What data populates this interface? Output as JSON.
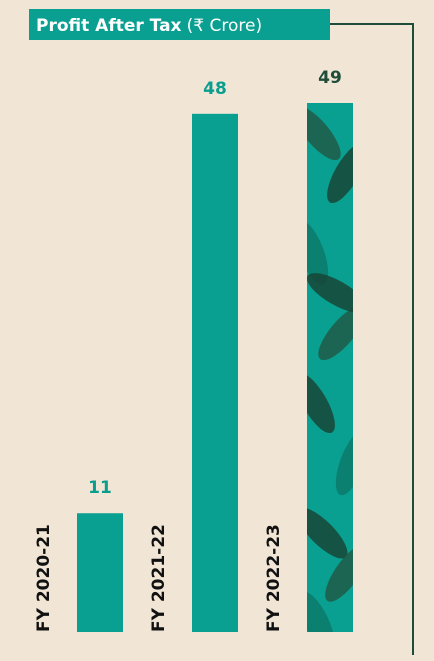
{
  "chart_data": {
    "type": "bar",
    "title": "Profit After Tax",
    "unit": "(₹ Crore)",
    "categories": [
      "FY 2020-21",
      "FY 2021-22",
      "FY 2022-23"
    ],
    "values": [
      11,
      48,
      49
    ],
    "color": "#0aa091",
    "value_label_colors": [
      "#0a9e8e",
      "#0a9e8e",
      "#1f4d3a"
    ],
    "bar_styles": [
      "solid",
      "solid",
      "leaf"
    ]
  }
}
